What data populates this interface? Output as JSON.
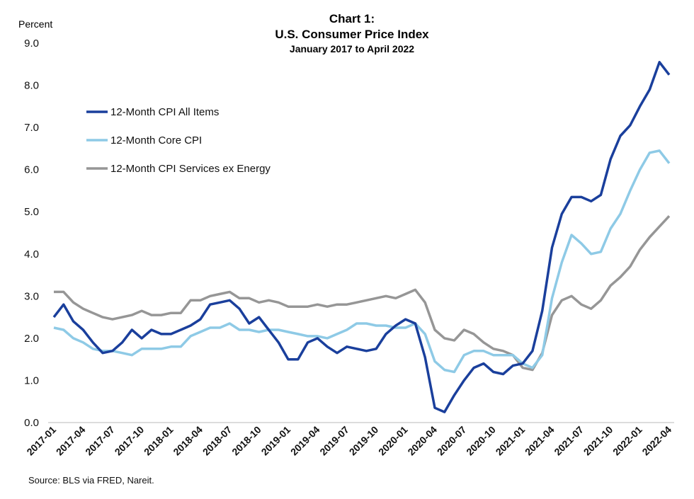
{
  "chart_data": {
    "type": "line",
    "title": "Chart 1:",
    "subtitle": "U.S. Consumer Price Index",
    "subtitle2": "January 2017 to April 2022",
    "ylabel": "Percent",
    "xlabel": "",
    "ylim": [
      0,
      9
    ],
    "yticks": [
      "0.0",
      "1.0",
      "2.0",
      "3.0",
      "4.0",
      "5.0",
      "6.0",
      "7.0",
      "8.0",
      "9.0"
    ],
    "x_start": "2017-01",
    "xticks": [
      "2017-01",
      "2017-04",
      "2017-07",
      "2017-10",
      "2018-01",
      "2018-04",
      "2018-07",
      "2018-10",
      "2019-01",
      "2019-04",
      "2019-07",
      "2019-10",
      "2020-01",
      "2020-04",
      "2020-07",
      "2020-10",
      "2021-01",
      "2021-04",
      "2021-07",
      "2021-10",
      "2022-01",
      "2022-04"
    ],
    "grid": false,
    "legend_position": "top-left",
    "source": "Source: BLS via FRED, Nareit.",
    "series": [
      {
        "name": "12-Month CPI All Items",
        "color": "#1a3f9c",
        "values": [
          2.5,
          2.8,
          2.4,
          2.2,
          1.9,
          1.65,
          1.7,
          1.9,
          2.2,
          2.0,
          2.2,
          2.1,
          2.1,
          2.2,
          2.3,
          2.45,
          2.8,
          2.85,
          2.9,
          2.7,
          2.35,
          2.5,
          2.2,
          1.9,
          1.5,
          1.5,
          1.9,
          2.0,
          1.8,
          1.65,
          1.8,
          1.75,
          1.7,
          1.75,
          2.1,
          2.3,
          2.45,
          2.35,
          1.55,
          0.35,
          0.25,
          0.65,
          1.0,
          1.3,
          1.4,
          1.2,
          1.15,
          1.35,
          1.4,
          1.7,
          2.65,
          4.15,
          4.95,
          5.35,
          5.35,
          5.25,
          5.4,
          6.25,
          6.8,
          7.05,
          7.5,
          7.9,
          8.55,
          8.25
        ]
      },
      {
        "name": "12-Month Core CPI",
        "color": "#8ecae6",
        "values": [
          2.25,
          2.2,
          2.0,
          1.9,
          1.75,
          1.7,
          1.7,
          1.65,
          1.6,
          1.75,
          1.75,
          1.75,
          1.8,
          1.8,
          2.05,
          2.15,
          2.25,
          2.25,
          2.35,
          2.2,
          2.2,
          2.15,
          2.2,
          2.2,
          2.15,
          2.1,
          2.05,
          2.05,
          2.0,
          2.1,
          2.2,
          2.35,
          2.35,
          2.3,
          2.3,
          2.25,
          2.25,
          2.35,
          2.1,
          1.45,
          1.25,
          1.2,
          1.6,
          1.7,
          1.7,
          1.6,
          1.6,
          1.6,
          1.4,
          1.3,
          1.6,
          2.95,
          3.8,
          4.45,
          4.25,
          4.0,
          4.05,
          4.6,
          4.95,
          5.5,
          6.0,
          6.4,
          6.45,
          6.15
        ]
      },
      {
        "name": "12-Month CPI Services ex Energy",
        "color": "#969696",
        "values": [
          3.1,
          3.1,
          2.85,
          2.7,
          2.6,
          2.5,
          2.45,
          2.5,
          2.55,
          2.65,
          2.55,
          2.55,
          2.6,
          2.6,
          2.9,
          2.9,
          3.0,
          3.05,
          3.1,
          2.95,
          2.95,
          2.85,
          2.9,
          2.85,
          2.75,
          2.75,
          2.75,
          2.8,
          2.75,
          2.8,
          2.8,
          2.85,
          2.9,
          2.95,
          3.0,
          2.95,
          3.05,
          3.15,
          2.85,
          2.2,
          2.0,
          1.95,
          2.2,
          2.1,
          1.9,
          1.75,
          1.7,
          1.6,
          1.3,
          1.25,
          1.65,
          2.55,
          2.9,
          3.0,
          2.8,
          2.7,
          2.9,
          3.25,
          3.45,
          3.7,
          4.1,
          4.4,
          4.65,
          4.9
        ]
      }
    ]
  }
}
